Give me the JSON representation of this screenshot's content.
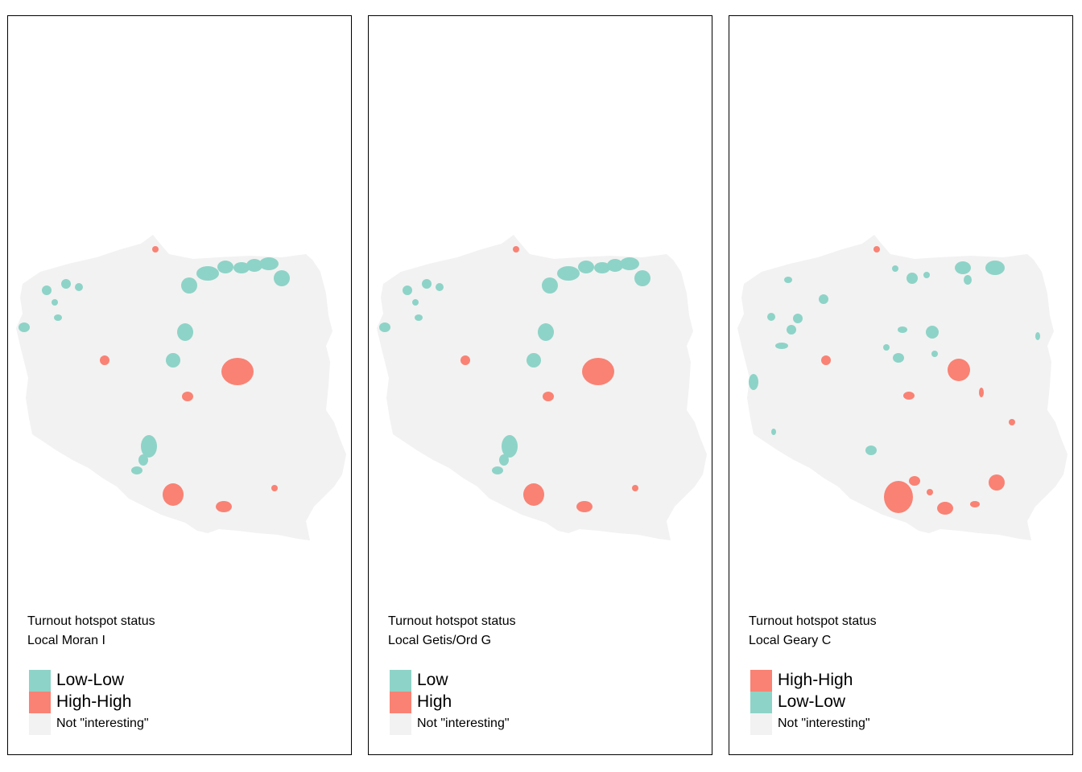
{
  "colors": {
    "low": "#8ed3c7",
    "high": "#f98274",
    "neutral": "#f2f2f2",
    "border": "#000000"
  },
  "panels": [
    {
      "legend_title": "Turnout hotspot status",
      "legend_subtitle": "Local Moran I",
      "legend_items": [
        {
          "label": "Low-Low",
          "class": "low"
        },
        {
          "label": "High-High",
          "class": "high"
        },
        {
          "label": "Not \"interesting\"",
          "class": "neutral"
        }
      ]
    },
    {
      "legend_title": "Turnout hotspot status",
      "legend_subtitle": "Local Getis/Ord G",
      "legend_items": [
        {
          "label": "Low",
          "class": "low"
        },
        {
          "label": "High",
          "class": "high"
        },
        {
          "label": "Not \"interesting\"",
          "class": "neutral"
        }
      ]
    },
    {
      "legend_title": "Turnout hotspot status",
      "legend_subtitle": "Local Geary C",
      "legend_items": [
        {
          "label": "High-High",
          "class": "high"
        },
        {
          "label": "Low-Low",
          "class": "low"
        },
        {
          "label": "Not \"interesting\"",
          "class": "neutral"
        }
      ]
    }
  ]
}
